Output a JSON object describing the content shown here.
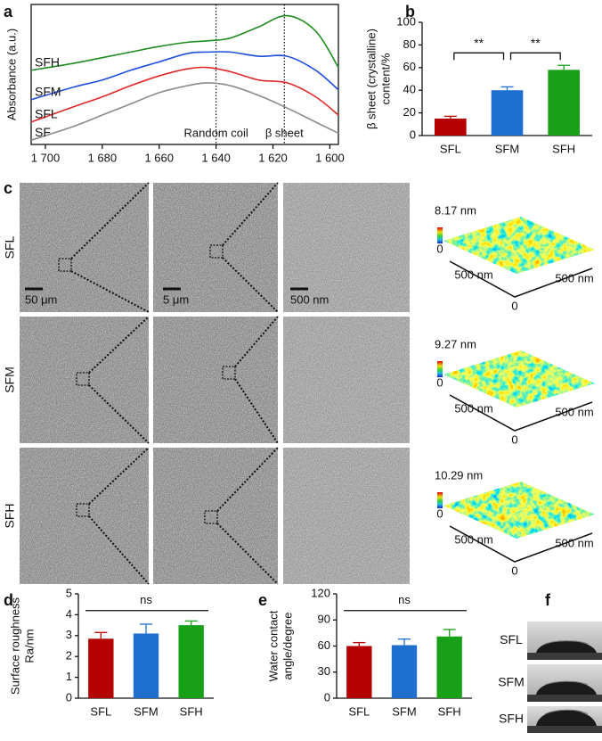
{
  "chart_data": [
    {
      "type": "line",
      "panel": "a",
      "y_label": "Absorbance (a.u.)",
      "x": [
        1705,
        1690,
        1680,
        1670,
        1660,
        1650,
        1643,
        1635,
        1625,
        1615,
        1605,
        1597
      ],
      "xlim": [
        1705,
        1597
      ],
      "ylim": [
        0,
        100
      ],
      "xticks": [
        {
          "value": 1700,
          "label": "1 700"
        },
        {
          "value": 1680,
          "label": "1 680"
        },
        {
          "value": 1660,
          "label": "1 660"
        },
        {
          "value": 1640,
          "label": "1 640"
        },
        {
          "value": 1620,
          "label": "1 620"
        },
        {
          "value": 1600,
          "label": "1 600"
        }
      ],
      "series": [
        {
          "name": "SFH",
          "color": "#1e8c1e",
          "values": [
            53,
            58,
            62,
            66,
            70,
            73,
            74,
            76,
            84,
            92,
            81,
            55
          ]
        },
        {
          "name": "SFM",
          "color": "#1f4fe0",
          "values": [
            32,
            41,
            46,
            53,
            59,
            65,
            66,
            66,
            63,
            63,
            53,
            39
          ]
        },
        {
          "name": "SFL",
          "color": "#e02828",
          "values": [
            16,
            27,
            34,
            42,
            49,
            54,
            55,
            52,
            46,
            44,
            34,
            21
          ]
        },
        {
          "name": "SF",
          "color": "#8c8c8c",
          "values": [
            3,
            13,
            21,
            29,
            37,
            42,
            44,
            42,
            35,
            26,
            16,
            8
          ]
        }
      ],
      "annotations": [
        {
          "text": "Random coil",
          "x": 1640
        },
        {
          "text": "β sheet",
          "x": 1616
        }
      ]
    },
    {
      "type": "bar",
      "panel": "b",
      "y_label": [
        "β sheet (crystalline)",
        "content/%"
      ],
      "categories": [
        "SFL",
        "SFM",
        "SFH"
      ],
      "values": [
        15,
        40,
        58
      ],
      "errors": [
        2,
        3,
        4
      ],
      "colors": [
        "#b40000",
        "#1f6fcf",
        "#18a018"
      ],
      "ylim": [
        0,
        100
      ],
      "yticks": [
        0,
        20,
        40,
        60,
        80,
        100
      ],
      "significance": [
        "**",
        "**"
      ]
    },
    {
      "type": "bar",
      "panel": "d",
      "y_label": [
        "Surface roughness",
        "Ra/nm"
      ],
      "categories": [
        "SFL",
        "SFM",
        "SFH"
      ],
      "values": [
        2.85,
        3.1,
        3.5
      ],
      "errors": [
        0.3,
        0.45,
        0.2
      ],
      "colors": [
        "#b40000",
        "#1f6fcf",
        "#18a018"
      ],
      "ylim": [
        0,
        5
      ],
      "yticks": [
        0,
        1,
        2,
        3,
        4,
        5
      ],
      "significance": [
        "ns"
      ]
    },
    {
      "type": "bar",
      "panel": "e",
      "y_label": [
        "Water contact",
        "angle/degree"
      ],
      "categories": [
        "SFL",
        "SFM",
        "SFH"
      ],
      "values": [
        60,
        61,
        71
      ],
      "errors": [
        4,
        7,
        8
      ],
      "colors": [
        "#b40000",
        "#1f6fcf",
        "#18a018"
      ],
      "ylim": [
        0,
        120
      ],
      "yticks": [
        0,
        30,
        60,
        90,
        120
      ],
      "significance": [
        "ns"
      ]
    }
  ],
  "panel_c": {
    "label": "c",
    "rows": [
      {
        "name": "SFL",
        "color": "#e02828"
      },
      {
        "name": "SFM",
        "color": "#2a2ae0"
      },
      {
        "name": "SFH",
        "color": "#1e9a1e"
      }
    ],
    "scale_bars": [
      "50 μm",
      "5 μm",
      "500 nm"
    ],
    "afm": [
      {
        "max": "8.17 nm",
        "min": "0",
        "x_axis": "500 nm",
        "y_axis": "500 nm",
        "origin": "0"
      },
      {
        "max": "9.27 nm",
        "min": "0",
        "x_axis": "500 nm",
        "y_axis": "500 nm",
        "origin": "0"
      },
      {
        "max": "10.29 nm",
        "min": "0",
        "x_axis": "500 nm",
        "y_axis": "500 nm",
        "origin": "0"
      }
    ]
  },
  "panel_f": {
    "label": "f",
    "rows": [
      {
        "name": "SFL",
        "color": "#e02828"
      },
      {
        "name": "SFM",
        "color": "#2a2ae0"
      },
      {
        "name": "SFH",
        "color": "#1e9a1e"
      }
    ]
  }
}
